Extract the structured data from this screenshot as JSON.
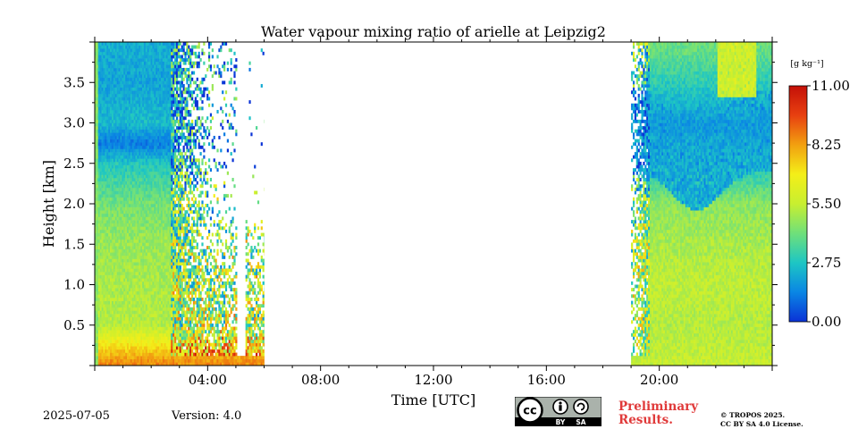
{
  "chart_data": {
    "type": "heatmap",
    "title": "Water vapour mixing ratio of arielle at Leipzig2",
    "xlabel": "Time [UTC]",
    "ylabel": "Height [km]",
    "xlim_hours": [
      0,
      24
    ],
    "ylim_km": [
      0,
      4.0
    ],
    "x_ticks": [
      {
        "value": 4,
        "label": "04:00"
      },
      {
        "value": 8,
        "label": "08:00"
      },
      {
        "value": 12,
        "label": "12:00"
      },
      {
        "value": 16,
        "label": "16:00"
      },
      {
        "value": 20,
        "label": "20:00"
      }
    ],
    "y_ticks": [
      {
        "value": 0.5,
        "label": "0.5"
      },
      {
        "value": 1.0,
        "label": "1.0"
      },
      {
        "value": 1.5,
        "label": "1.5"
      },
      {
        "value": 2.0,
        "label": "2.0"
      },
      {
        "value": 2.5,
        "label": "2.5"
      },
      {
        "value": 3.0,
        "label": "3.0"
      },
      {
        "value": 3.5,
        "label": "3.5"
      }
    ],
    "colorbar": {
      "unit_label": "[g kg⁻¹]",
      "range": [
        0,
        11
      ],
      "ticks": [
        {
          "value": 0,
          "label": "0.00"
        },
        {
          "value": 2.75,
          "label": "2.75"
        },
        {
          "value": 5.5,
          "label": "5.50"
        },
        {
          "value": 8.25,
          "label": "8.25"
        },
        {
          "value": 11,
          "label": "11.00"
        }
      ],
      "colors": [
        "#0a32d6",
        "#0a86e4",
        "#1dc6c4",
        "#6fe07a",
        "#c8ef30",
        "#f4ef18",
        "#f2a010",
        "#e84010",
        "#c41008"
      ]
    },
    "data_periods": [
      {
        "start_hour": 0.0,
        "end_hour": 6.0,
        "description": "morning profiles, sparse above boundary layer after 03:00"
      },
      {
        "start_hour": 19.0,
        "end_hour": 24.0,
        "description": "evening profiles"
      }
    ],
    "morning_profile": {
      "heights_km": [
        0.05,
        0.5,
        1.0,
        1.5,
        2.0,
        2.5,
        2.75,
        3.0,
        3.5,
        3.9
      ],
      "values_gkg": [
        8.5,
        5.2,
        5.0,
        4.8,
        4.2,
        2.8,
        1.2,
        2.5,
        2.0,
        2.2
      ]
    },
    "evening_profile": {
      "heights_km": [
        0.05,
        0.5,
        1.0,
        1.5,
        2.0,
        2.5,
        3.0,
        3.5,
        3.9
      ],
      "values_gkg": [
        5.5,
        5.2,
        5.4,
        5.0,
        4.6,
        2.5,
        1.8,
        3.0,
        4.0
      ]
    }
  },
  "footer": {
    "date": "2025-07-05",
    "version": "Version: 4.0",
    "preliminary_line1": "Preliminary",
    "preliminary_line2": "Results.",
    "copyright_line1": "© TROPOS 2025.",
    "copyright_line2": "CC BY SA 4.0 License.",
    "license_by": "BY",
    "license_sa": "SA",
    "license_cc": "cc"
  }
}
